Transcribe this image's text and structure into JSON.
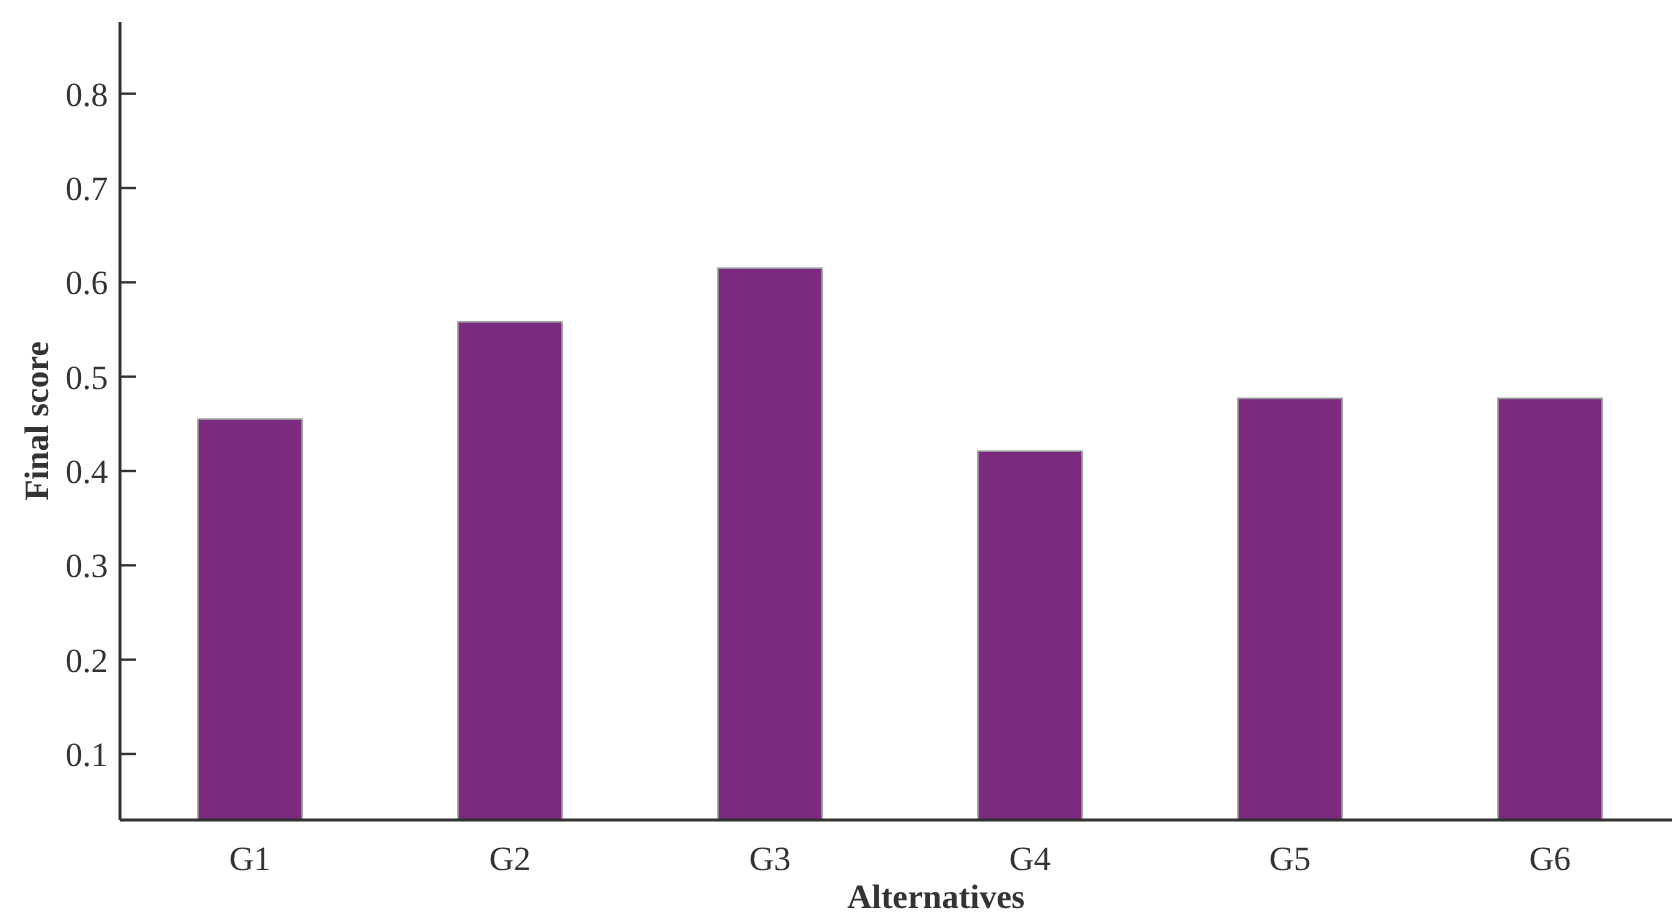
{
  "chart_data": {
    "type": "bar",
    "xlabel": "Alternatives",
    "ylabel": "Final score",
    "categories": [
      "G1",
      "G2",
      "G3",
      "G4",
      "G5",
      "G6"
    ],
    "values": [
      0.455,
      0.558,
      0.615,
      0.421,
      0.477,
      0.477
    ],
    "color": "#7b2a80",
    "ylim": [
      0.03,
      0.876
    ],
    "yticks": [
      0.1,
      0.2,
      0.3,
      0.4,
      0.5,
      0.6,
      0.7,
      0.8
    ],
    "grid": false
  }
}
